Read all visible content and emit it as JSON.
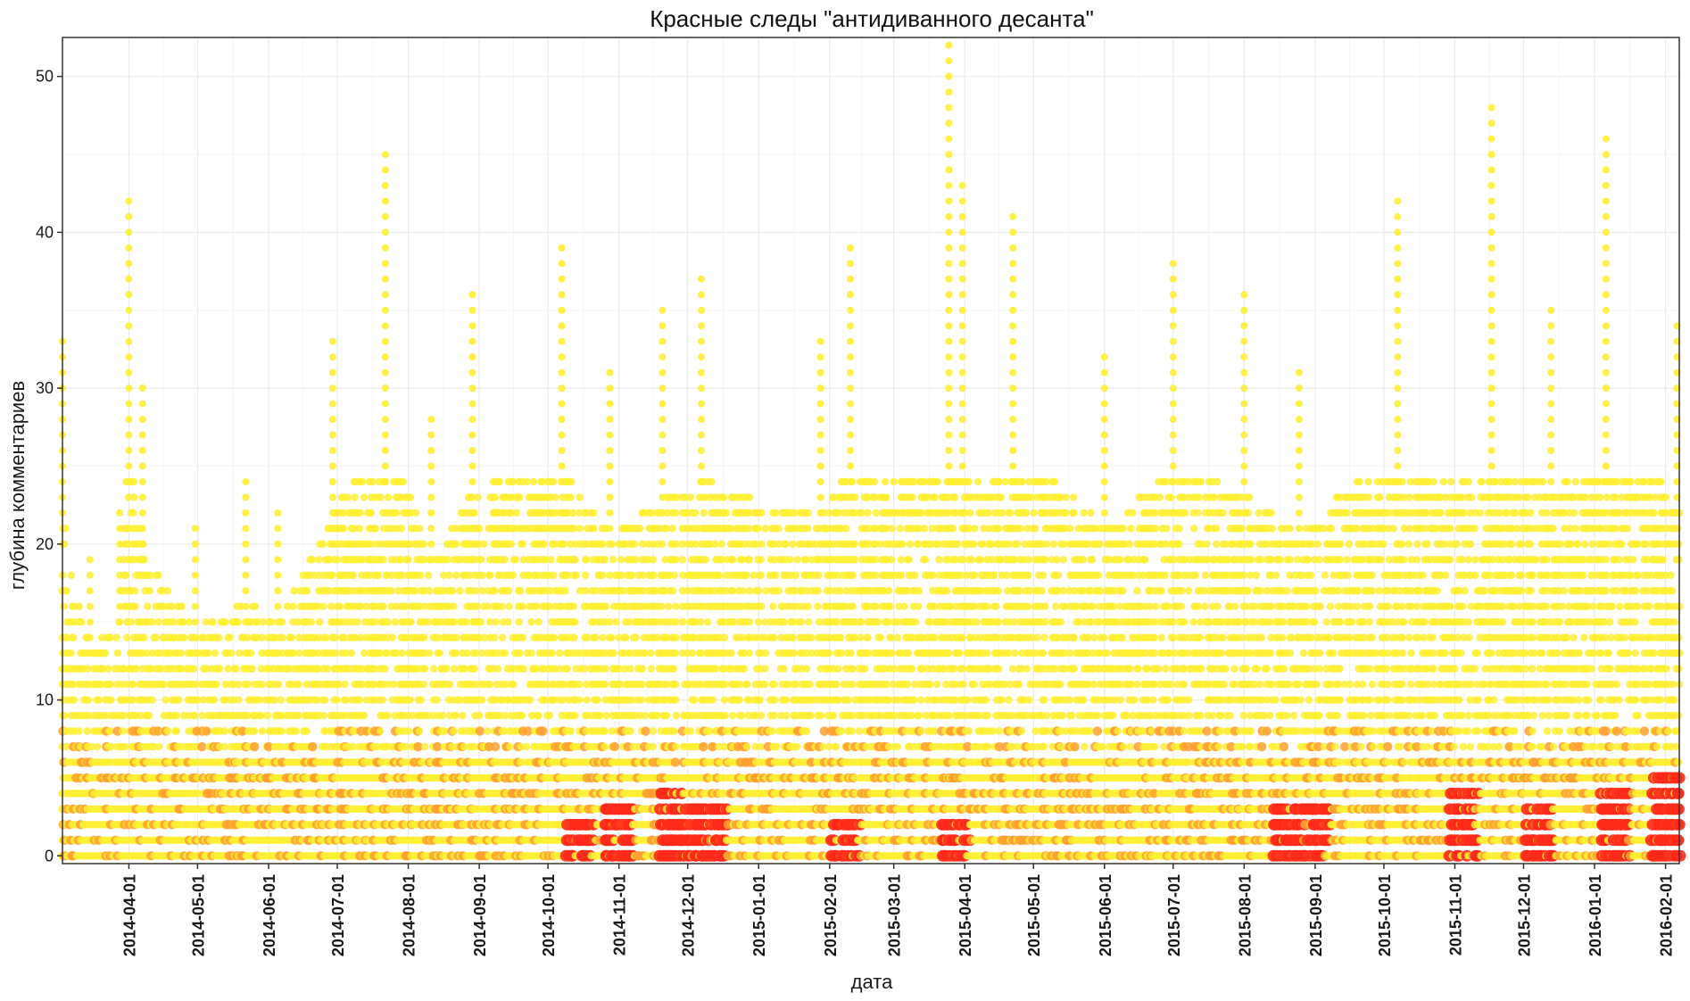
{
  "chart_data": {
    "type": "scatter",
    "title": "Красные следы \"антидиванного десанта\"",
    "xlabel": "дата",
    "ylabel": "глубина комментариев",
    "x_type": "date",
    "xlim": [
      "2014-03-03",
      "2016-02-07"
    ],
    "ylim": [
      -0.5,
      52.5
    ],
    "x_ticks": [
      "2014-04-01",
      "2014-05-01",
      "2014-06-01",
      "2014-07-01",
      "2014-08-01",
      "2014-09-01",
      "2014-10-01",
      "2014-11-01",
      "2014-12-01",
      "2015-01-01",
      "2015-02-01",
      "2015-03-01",
      "2015-04-01",
      "2015-05-01",
      "2015-06-01",
      "2015-07-01",
      "2015-08-01",
      "2015-09-01",
      "2015-10-01",
      "2015-11-01",
      "2015-12-01",
      "2016-01-01",
      "2016-02-01"
    ],
    "y_ticks": [
      0,
      10,
      20,
      30,
      40,
      50
    ],
    "grid": true,
    "legend": "none",
    "colors": {
      "low": "#FFEE33",
      "mid": "#FFA030",
      "high": "#FF2A1A",
      "max": "#111111",
      "panel_border": "#333333",
      "grid": "#ebebeb"
    },
    "daily_max_depth": [
      {
        "date": "2014-03-03",
        "max_depth": 33
      },
      {
        "date": "2014-03-15",
        "max_depth": 19
      },
      {
        "date": "2014-03-28",
        "max_depth": 22
      },
      {
        "date": "2014-04-01",
        "max_depth": 42
      },
      {
        "date": "2014-04-07",
        "max_depth": 30
      },
      {
        "date": "2014-04-30",
        "max_depth": 21
      },
      {
        "date": "2014-05-22",
        "max_depth": 24
      },
      {
        "date": "2014-06-05",
        "max_depth": 22
      },
      {
        "date": "2014-06-29",
        "max_depth": 33
      },
      {
        "date": "2014-07-22",
        "max_depth": 45
      },
      {
        "date": "2014-08-11",
        "max_depth": 28
      },
      {
        "date": "2014-08-29",
        "max_depth": 36
      },
      {
        "date": "2014-10-07",
        "max_depth": 39
      },
      {
        "date": "2014-10-28",
        "max_depth": 31
      },
      {
        "date": "2014-11-20",
        "max_depth": 35
      },
      {
        "date": "2014-12-07",
        "max_depth": 37
      },
      {
        "date": "2015-01-28",
        "max_depth": 33
      },
      {
        "date": "2015-02-10",
        "max_depth": 39
      },
      {
        "date": "2015-03-25",
        "max_depth": 52
      },
      {
        "date": "2015-03-31",
        "max_depth": 43
      },
      {
        "date": "2015-04-22",
        "max_depth": 41
      },
      {
        "date": "2015-06-01",
        "max_depth": 32
      },
      {
        "date": "2015-07-01",
        "max_depth": 38
      },
      {
        "date": "2015-08-01",
        "max_depth": 36
      },
      {
        "date": "2015-08-25",
        "max_depth": 31
      },
      {
        "date": "2015-10-07",
        "max_depth": 42
      },
      {
        "date": "2015-11-17",
        "max_depth": 48
      },
      {
        "date": "2015-12-13",
        "max_depth": 35
      },
      {
        "date": "2016-01-06",
        "max_depth": 46
      },
      {
        "date": "2016-02-06",
        "max_depth": 34
      }
    ],
    "red_clusters": [
      {
        "date": "2014-10-15",
        "max_depth": 2
      },
      {
        "date": "2014-11-01",
        "max_depth": 3
      },
      {
        "date": "2014-11-25",
        "max_depth": 4
      },
      {
        "date": "2014-12-01",
        "max_depth": 3
      },
      {
        "date": "2014-12-12",
        "max_depth": 3
      },
      {
        "date": "2015-02-08",
        "max_depth": 2
      },
      {
        "date": "2015-03-28",
        "max_depth": 2
      },
      {
        "date": "2015-08-20",
        "max_depth": 3
      },
      {
        "date": "2015-09-01",
        "max_depth": 3
      },
      {
        "date": "2015-11-05",
        "max_depth": 4
      },
      {
        "date": "2015-12-08",
        "max_depth": 3
      },
      {
        "date": "2016-01-10",
        "max_depth": 4
      },
      {
        "date": "2016-02-01",
        "max_depth": 5
      }
    ]
  }
}
